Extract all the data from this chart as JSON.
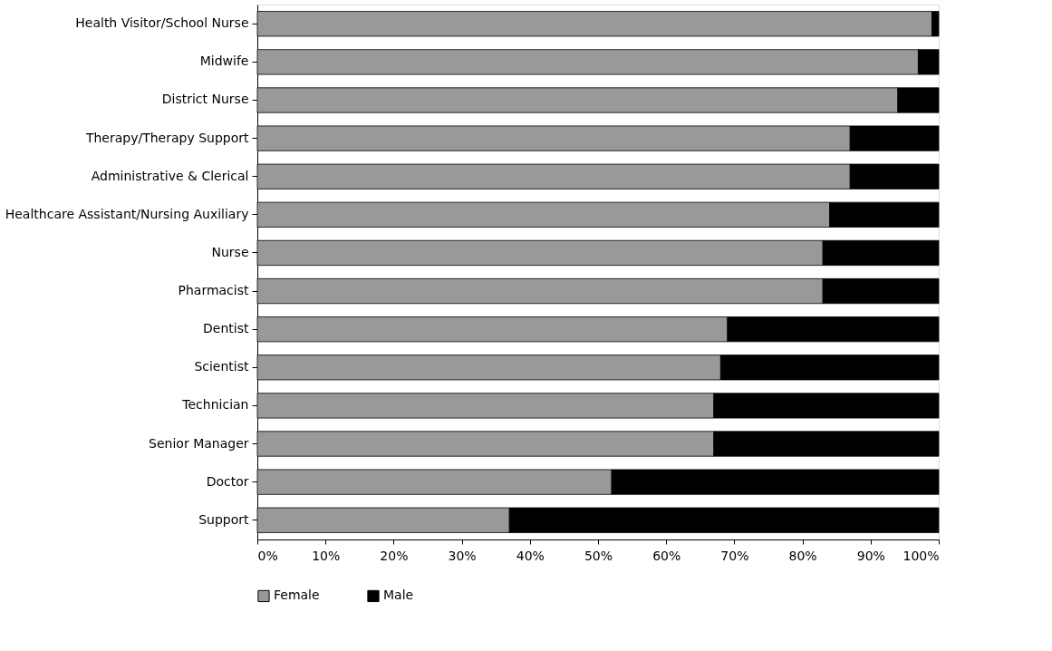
{
  "chart_data": {
    "type": "bar",
    "orientation": "horizontal",
    "stacked": true,
    "categories": [
      "Health Visitor/School Nurse",
      "Midwife",
      "District Nurse",
      "Therapy/Therapy Support",
      "Administrative & Clerical",
      "Healthcare Assistant/Nursing Auxiliary",
      "Nurse",
      "Pharmacist",
      "Dentist",
      "Scientist",
      "Technician",
      "Senior Manager",
      "Doctor",
      "Support"
    ],
    "series": [
      {
        "name": "Female",
        "color": "#999999",
        "values": [
          99,
          97,
          94,
          87,
          87,
          84,
          83,
          83,
          69,
          68,
          67,
          67,
          52,
          37
        ]
      },
      {
        "name": "Male",
        "color": "#000000",
        "values": [
          1,
          3,
          6,
          13,
          13,
          16,
          17,
          17,
          31,
          32,
          33,
          33,
          48,
          63
        ]
      }
    ],
    "xlim": [
      0,
      100
    ],
    "xticks": [
      {
        "value": 0,
        "label": "0%"
      },
      {
        "value": 10,
        "label": "10%"
      },
      {
        "value": 20,
        "label": "20%"
      },
      {
        "value": 30,
        "label": "30%"
      },
      {
        "value": 40,
        "label": "40%"
      },
      {
        "value": 50,
        "label": "50%"
      },
      {
        "value": 60,
        "label": "60%"
      },
      {
        "value": 70,
        "label": "70%"
      },
      {
        "value": 80,
        "label": "80%"
      },
      {
        "value": 90,
        "label": "90%"
      },
      {
        "value": 100,
        "label": "100%"
      }
    ],
    "grid": false,
    "legend": "bottom"
  }
}
